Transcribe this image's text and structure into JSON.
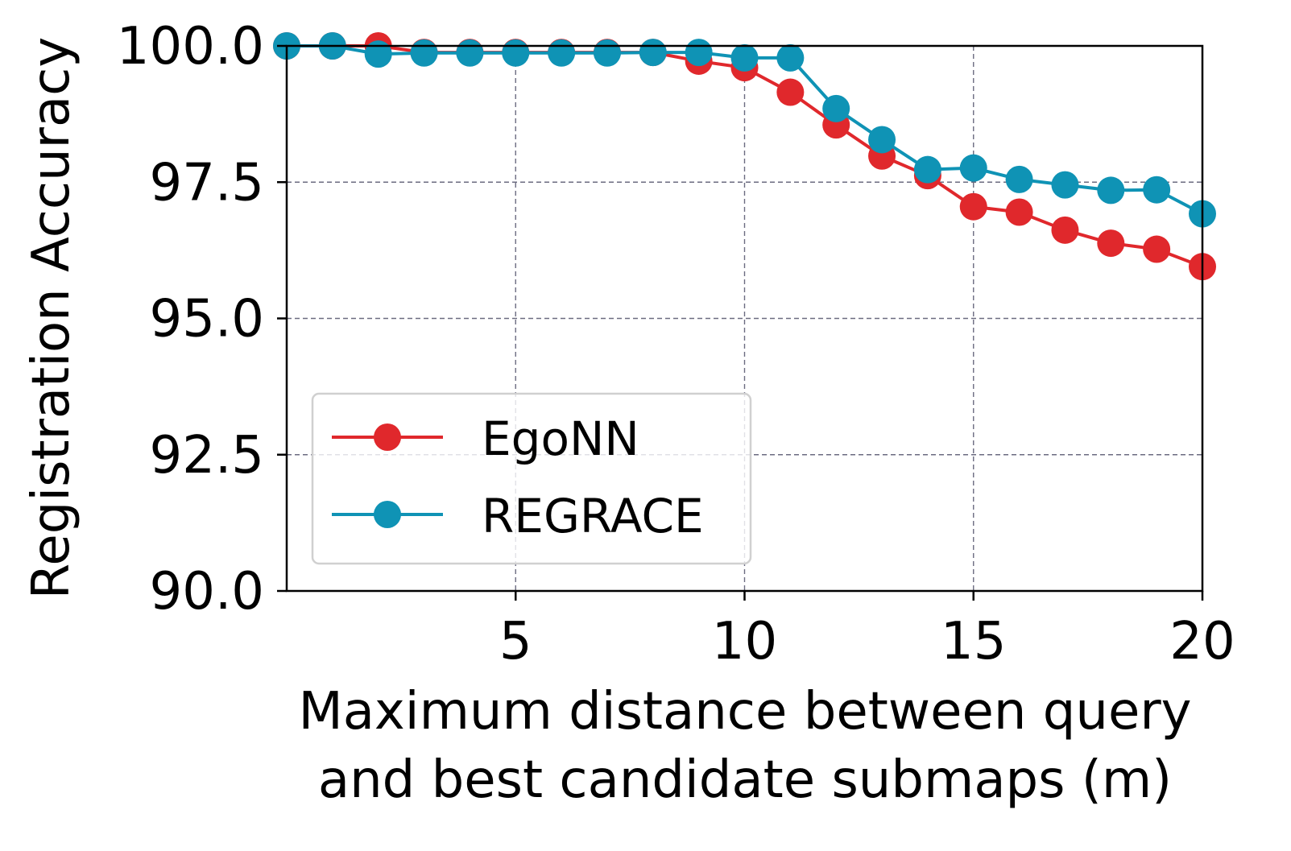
{
  "chart_data": {
    "type": "line",
    "title": "",
    "xlabel_lines": [
      "Maximum distance between query",
      "and best candidate submaps (m)"
    ],
    "ylabel": "Registration Accuracy",
    "xlim": [
      0,
      20
    ],
    "ylim": [
      90,
      100
    ],
    "xticks": [
      5,
      10,
      15,
      20
    ],
    "xtick_labels": [
      "5",
      "10",
      "15",
      "20"
    ],
    "yticks": [
      90,
      92.5,
      95,
      97.5,
      100
    ],
    "ytick_labels": [
      "90.0",
      "92.5",
      "95.0",
      "97.5",
      "100.0"
    ],
    "grid": true,
    "legend_position": "lower-left",
    "x": [
      0,
      1,
      2,
      3,
      4,
      5,
      6,
      7,
      8,
      9,
      10,
      11,
      12,
      13,
      14,
      15,
      16,
      17,
      18,
      19,
      20
    ],
    "series": [
      {
        "name": "EgoNN",
        "color": "#e0282c",
        "values": [
          100.0,
          100.0,
          100.0,
          99.88,
          99.88,
          99.88,
          99.88,
          99.88,
          99.88,
          99.72,
          99.6,
          99.15,
          98.55,
          97.98,
          97.62,
          97.05,
          96.95,
          96.62,
          96.38,
          96.27,
          95.95
        ]
      },
      {
        "name": "REGRACE",
        "color": "#0f93b5",
        "values": [
          100.0,
          100.0,
          99.85,
          99.87,
          99.87,
          99.87,
          99.87,
          99.87,
          99.88,
          99.88,
          99.78,
          99.78,
          98.85,
          98.28,
          97.73,
          97.76,
          97.55,
          97.45,
          97.35,
          97.36,
          96.92
        ]
      }
    ]
  }
}
